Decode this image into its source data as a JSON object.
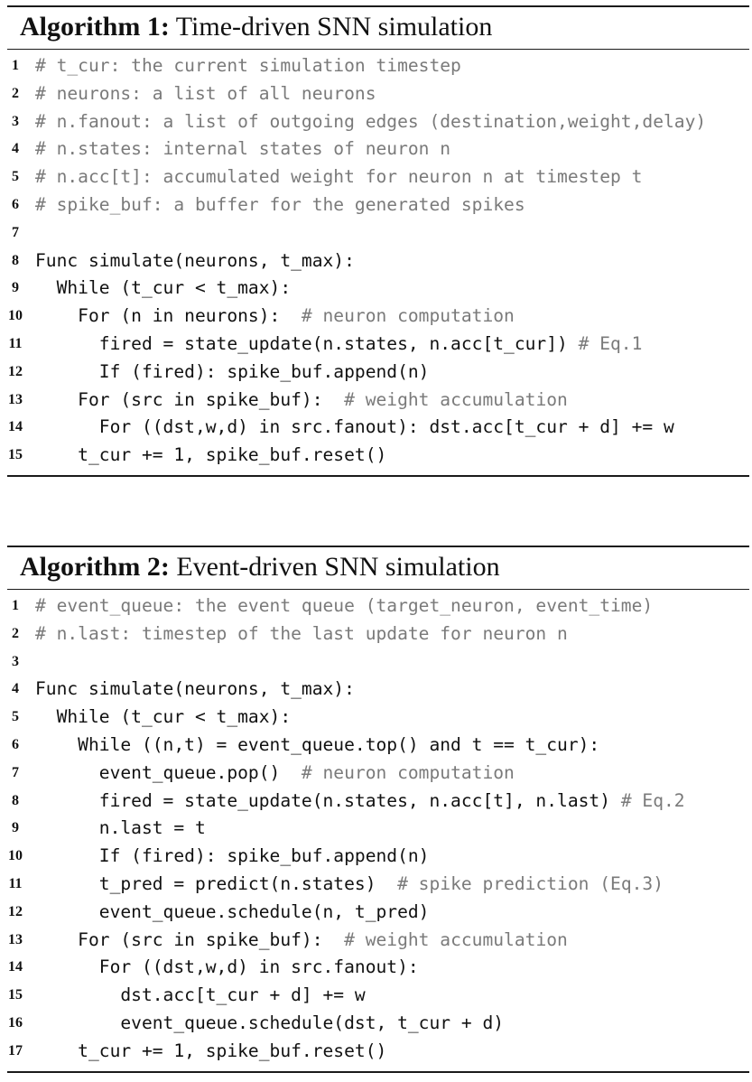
{
  "algorithms": [
    {
      "label": "Algorithm 1:",
      "title": "Time-driven SNN simulation",
      "lines": [
        {
          "n": "1",
          "code": "",
          "comment": "# t_cur: the current simulation timestep"
        },
        {
          "n": "2",
          "code": "",
          "comment": "# neurons: a list of all neurons"
        },
        {
          "n": "3",
          "code": "",
          "comment": "# n.fanout: a list of outgoing edges (destination,weight,delay)"
        },
        {
          "n": "4",
          "code": "",
          "comment": "# n.states: internal states of neuron n"
        },
        {
          "n": "5",
          "code": "",
          "comment": "# n.acc[t]: accumulated weight for neuron n at timestep t"
        },
        {
          "n": "6",
          "code": "",
          "comment": "# spike_buf: a buffer for the generated spikes"
        },
        {
          "n": "7",
          "code": "",
          "comment": ""
        },
        {
          "n": "8",
          "code": "Func simulate(neurons, t_max):",
          "comment": ""
        },
        {
          "n": "9",
          "code": "  While (t_cur < t_max):",
          "comment": ""
        },
        {
          "n": "10",
          "code": "    For (n in neurons):  ",
          "comment": "# neuron computation"
        },
        {
          "n": "11",
          "code": "      fired = state_update(n.states, n.acc[t_cur]) ",
          "comment": "# Eq.1"
        },
        {
          "n": "12",
          "code": "      If (fired): spike_buf.append(n)",
          "comment": ""
        },
        {
          "n": "13",
          "code": "    For (src in spike_buf):  ",
          "comment": "# weight accumulation"
        },
        {
          "n": "14",
          "code": "      For ((dst,w,d) in src.fanout): dst.acc[t_cur + d] += w",
          "comment": ""
        },
        {
          "n": "15",
          "code": "    t_cur += 1, spike_buf.reset()",
          "comment": ""
        }
      ]
    },
    {
      "label": "Algorithm 2:",
      "title": "Event-driven SNN simulation",
      "lines": [
        {
          "n": "1",
          "code": "",
          "comment": "# event_queue: the event queue (target_neuron, event_time)"
        },
        {
          "n": "2",
          "code": "",
          "comment": "# n.last: timestep of the last update for neuron n"
        },
        {
          "n": "3",
          "code": "",
          "comment": ""
        },
        {
          "n": "4",
          "code": "Func simulate(neurons, t_max):",
          "comment": ""
        },
        {
          "n": "5",
          "code": "  While (t_cur < t_max):",
          "comment": ""
        },
        {
          "n": "6",
          "code": "    While ((n,t) = event_queue.top() and t == t_cur):",
          "comment": ""
        },
        {
          "n": "7",
          "code": "      event_queue.pop()  ",
          "comment": "# neuron computation"
        },
        {
          "n": "8",
          "code": "      fired = state_update(n.states, n.acc[t], n.last) ",
          "comment": "# Eq.2"
        },
        {
          "n": "9",
          "code": "      n.last = t",
          "comment": ""
        },
        {
          "n": "10",
          "code": "      If (fired): spike_buf.append(n)",
          "comment": ""
        },
        {
          "n": "11",
          "code": "      t_pred = predict(n.states)  ",
          "comment": "# spike prediction (Eq.3)"
        },
        {
          "n": "12",
          "code": "      event_queue.schedule(n, t_pred)",
          "comment": ""
        },
        {
          "n": "13",
          "code": "    For (src in spike_buf):  ",
          "comment": "# weight accumulation"
        },
        {
          "n": "14",
          "code": "      For ((dst,w,d) in src.fanout):",
          "comment": ""
        },
        {
          "n": "15",
          "code": "        dst.acc[t_cur + d] += w",
          "comment": ""
        },
        {
          "n": "16",
          "code": "        event_queue.schedule(dst, t_cur + d)",
          "comment": ""
        },
        {
          "n": "17",
          "code": "    t_cur += 1, spike_buf.reset()",
          "comment": ""
        }
      ]
    }
  ]
}
